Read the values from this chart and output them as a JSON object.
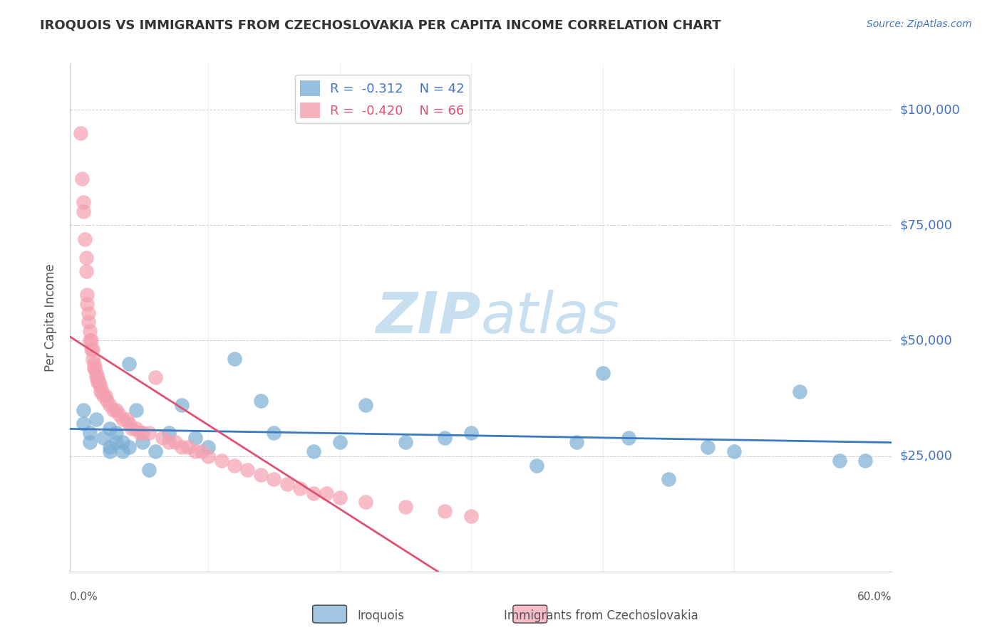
{
  "title": "IROQUOIS VS IMMIGRANTS FROM CZECHOSLOVAKIA PER CAPITA INCOME CORRELATION CHART",
  "source": "Source: ZipAtlas.com",
  "ylabel": "Per Capita Income",
  "yticks": [
    0,
    25000,
    50000,
    75000,
    100000
  ],
  "ytick_labels": [
    "",
    "$25,000",
    "$50,000",
    "$75,000",
    "$100,000"
  ],
  "ylim": [
    0,
    110000
  ],
  "xlim": [
    -0.005,
    0.62
  ],
  "legend_blue_r": "-0.312",
  "legend_blue_n": "42",
  "legend_pink_r": "-0.420",
  "legend_pink_n": "66",
  "blue_color": "#7bafd4",
  "pink_color": "#f4a0b0",
  "blue_line_color": "#3a7bbf",
  "pink_line_color": "#e05070",
  "watermark_zip": "ZIP",
  "watermark_atlas": "atlas",
  "watermark_color": "#c8dff0",
  "blue_x": [
    0.005,
    0.005,
    0.01,
    0.01,
    0.015,
    0.02,
    0.025,
    0.025,
    0.025,
    0.03,
    0.03,
    0.035,
    0.035,
    0.04,
    0.04,
    0.045,
    0.05,
    0.055,
    0.06,
    0.07,
    0.08,
    0.09,
    0.1,
    0.12,
    0.14,
    0.15,
    0.18,
    0.2,
    0.22,
    0.25,
    0.28,
    0.3,
    0.35,
    0.38,
    0.4,
    0.42,
    0.45,
    0.48,
    0.5,
    0.55,
    0.58,
    0.6
  ],
  "blue_y": [
    35000,
    32000,
    30000,
    28000,
    33000,
    29000,
    31000,
    27000,
    26000,
    28000,
    30000,
    28000,
    26000,
    45000,
    27000,
    35000,
    28000,
    22000,
    26000,
    30000,
    36000,
    29000,
    27000,
    46000,
    37000,
    30000,
    26000,
    28000,
    36000,
    28000,
    29000,
    30000,
    23000,
    28000,
    43000,
    29000,
    20000,
    27000,
    26000,
    39000,
    24000,
    24000
  ],
  "pink_x": [
    0.003,
    0.004,
    0.005,
    0.005,
    0.006,
    0.007,
    0.007,
    0.008,
    0.008,
    0.009,
    0.009,
    0.01,
    0.01,
    0.011,
    0.011,
    0.012,
    0.012,
    0.013,
    0.013,
    0.014,
    0.015,
    0.015,
    0.016,
    0.016,
    0.017,
    0.018,
    0.018,
    0.019,
    0.02,
    0.022,
    0.023,
    0.025,
    0.028,
    0.03,
    0.032,
    0.035,
    0.038,
    0.04,
    0.042,
    0.045,
    0.048,
    0.05,
    0.055,
    0.06,
    0.065,
    0.07,
    0.075,
    0.08,
    0.085,
    0.09,
    0.095,
    0.1,
    0.11,
    0.12,
    0.13,
    0.14,
    0.15,
    0.16,
    0.17,
    0.18,
    0.19,
    0.2,
    0.22,
    0.25,
    0.28,
    0.3
  ],
  "pink_y": [
    95000,
    85000,
    80000,
    78000,
    72000,
    68000,
    65000,
    60000,
    58000,
    56000,
    54000,
    52000,
    50000,
    50000,
    48000,
    48000,
    46000,
    45000,
    44000,
    44000,
    43000,
    42000,
    42000,
    41000,
    41000,
    40000,
    39000,
    39000,
    38000,
    38000,
    37000,
    36000,
    35000,
    35000,
    34000,
    33000,
    33000,
    32000,
    31000,
    31000,
    30000,
    30000,
    30000,
    42000,
    29000,
    28000,
    28000,
    27000,
    27000,
    26000,
    26000,
    25000,
    24000,
    23000,
    22000,
    21000,
    20000,
    19000,
    18000,
    17000,
    17000,
    16000,
    15000,
    14000,
    13000,
    12000
  ]
}
